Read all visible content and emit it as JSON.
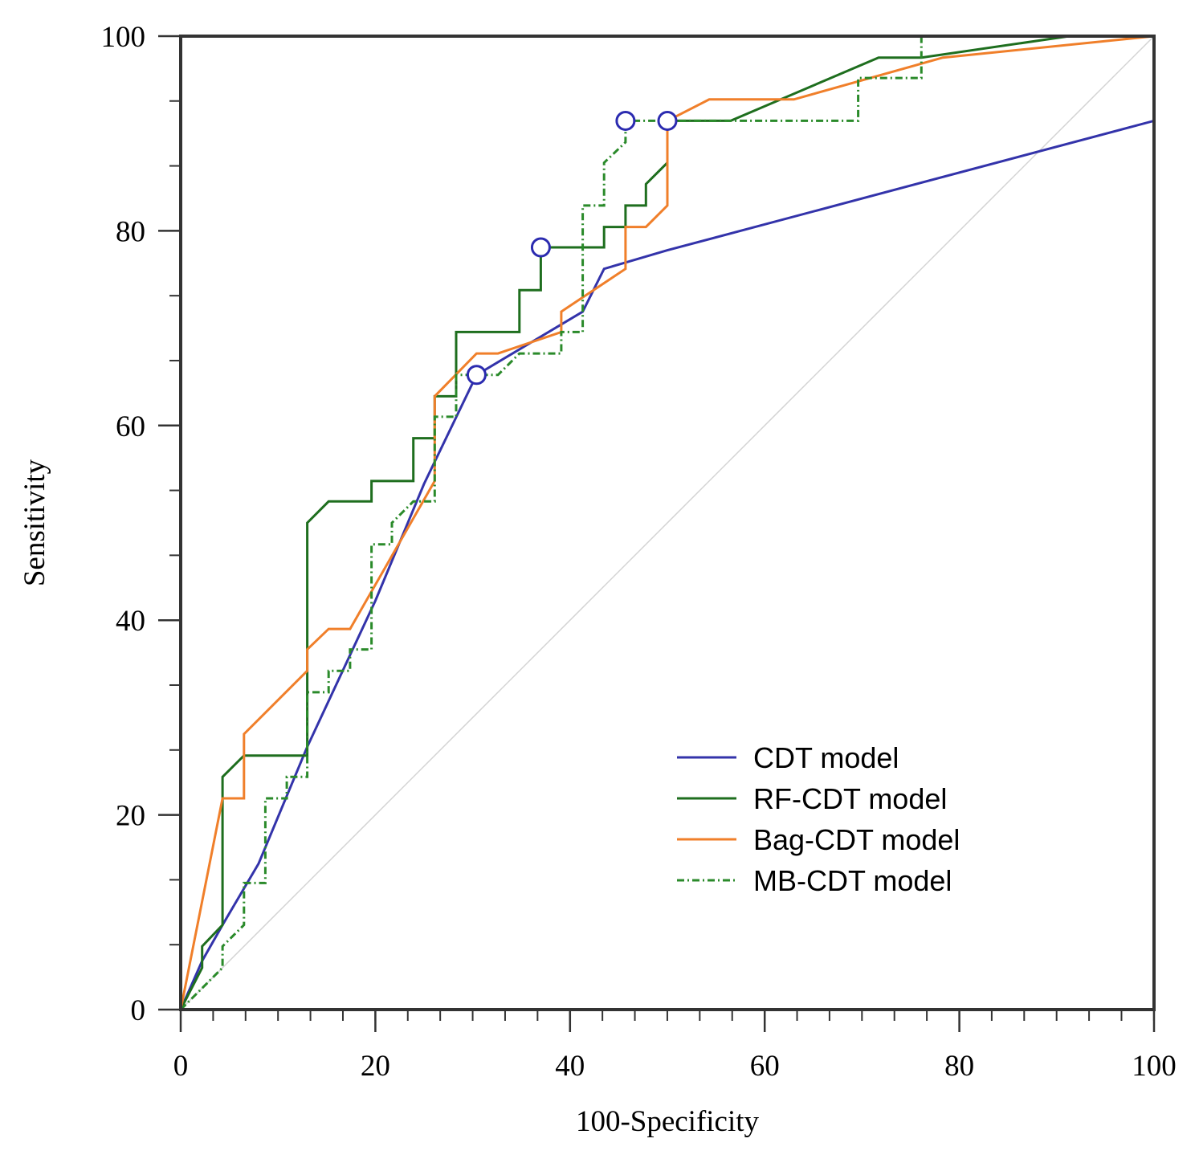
{
  "chart_data": {
    "type": "line",
    "title": "",
    "xlabel": "100-Specificity",
    "ylabel": "Sensitivity",
    "xlim": [
      0,
      100
    ],
    "ylim": [
      0,
      100
    ],
    "xticks": [
      0,
      20,
      40,
      60,
      80,
      100
    ],
    "yticks": [
      0,
      20,
      40,
      60,
      80,
      100
    ],
    "x_minor_step": 3.333,
    "y_minor_step": 6.667,
    "grid": false,
    "legend_position": "bottom-right",
    "diagonal_reference": {
      "color": "#d3d3d3",
      "from": [
        0,
        0
      ],
      "to": [
        100,
        100
      ]
    },
    "series": [
      {
        "name": "CDT model",
        "color": "#3333aa",
        "style": "solid",
        "x": [
          0,
          2.2,
          4.3,
          8,
          13,
          20,
          25,
          30.4,
          41.3,
          43.5,
          50,
          100,
          100
        ],
        "y": [
          0,
          5,
          8.7,
          15,
          27,
          42,
          54,
          65.2,
          71.7,
          76.1,
          78,
          91.3,
          100
        ],
        "optimal_point": {
          "x": 30.4,
          "y": 65.2
        }
      },
      {
        "name": "RF-CDT model",
        "color": "#1e6e1e",
        "style": "solid",
        "x": [
          0,
          2.2,
          2.2,
          4.3,
          4.3,
          6.5,
          13,
          13,
          15.2,
          19.6,
          19.6,
          23.9,
          23.9,
          26.1,
          26.1,
          28.3,
          28.3,
          34.8,
          34.8,
          37,
          37,
          43.5,
          43.5,
          45.7,
          45.7,
          47.8,
          47.8,
          50,
          50,
          56.5,
          71.7,
          76.1,
          91.3,
          100
        ],
        "y": [
          0,
          4.3,
          6.5,
          8.7,
          23.9,
          26.1,
          26.1,
          50,
          52.2,
          52.2,
          54.3,
          54.3,
          58.7,
          58.7,
          63,
          63,
          69.6,
          69.6,
          73.9,
          73.9,
          78.3,
          78.3,
          80.4,
          80.4,
          82.6,
          82.6,
          84.8,
          87,
          91.3,
          91.3,
          97.8,
          97.8,
          100,
          100
        ],
        "optimal_point": {
          "x": 37,
          "y": 78.3
        }
      },
      {
        "name": "Bag-CDT model",
        "color": "#f07f2a",
        "style": "solid",
        "x": [
          0,
          4.3,
          6.5,
          6.5,
          13,
          13,
          15.2,
          17.4,
          26.1,
          26.1,
          30.4,
          32.6,
          39.1,
          39.1,
          45.7,
          45.7,
          47.8,
          50,
          50,
          54.3,
          63,
          78.3,
          100
        ],
        "y": [
          0,
          21.7,
          21.7,
          28.3,
          34.8,
          37,
          39.1,
          39.1,
          54.3,
          63,
          67.4,
          67.4,
          69.6,
          71.7,
          76.1,
          80.4,
          80.4,
          82.6,
          91.3,
          93.5,
          93.5,
          97.8,
          100
        ]
      },
      {
        "name": "MB-CDT model",
        "color": "#2a8a2a",
        "style": "dashdot",
        "x": [
          0,
          4.3,
          4.3,
          6.5,
          6.5,
          8.7,
          8.7,
          10.9,
          10.9,
          13,
          13,
          15.2,
          15.2,
          17.4,
          17.4,
          19.6,
          19.6,
          21.7,
          21.7,
          23.9,
          23.9,
          26.1,
          26.1,
          28.3,
          28.3,
          32.6,
          34.8,
          39.1,
          39.1,
          41.3,
          41.3,
          43.5,
          43.5,
          45.7,
          45.7,
          69.6,
          69.6,
          76.1,
          76.1,
          100
        ],
        "y": [
          0,
          4.3,
          6.5,
          8.7,
          13,
          13,
          21.7,
          21.7,
          23.9,
          23.9,
          32.6,
          32.6,
          34.8,
          34.8,
          37,
          37,
          47.8,
          47.8,
          50,
          52.2,
          52.2,
          52.2,
          60.9,
          60.9,
          65.2,
          65.2,
          67.4,
          67.4,
          69.6,
          69.6,
          82.6,
          82.6,
          87,
          89.1,
          91.3,
          91.3,
          95.7,
          95.7,
          100,
          100
        ],
        "optimal_point": {
          "x": 45.7,
          "y": 91.3
        }
      }
    ],
    "extra_markers": [
      {
        "x": 50,
        "y": 91.3,
        "color": "#2b2bb0"
      }
    ]
  }
}
